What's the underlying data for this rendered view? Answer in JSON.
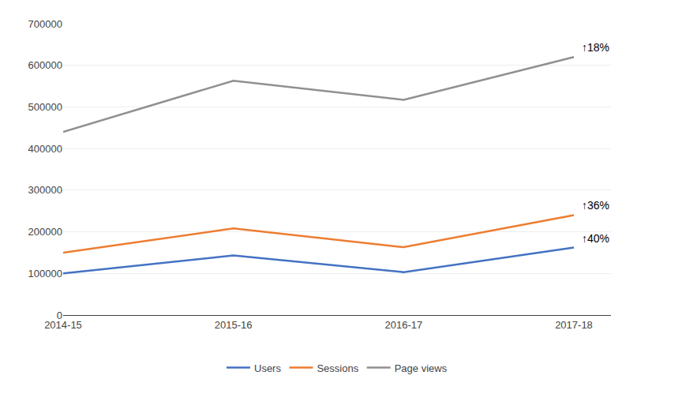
{
  "chart_data": {
    "type": "line",
    "categories": [
      "2014-15",
      "2015-16",
      "2016-17",
      "2017-18"
    ],
    "series": [
      {
        "name": "Users",
        "color": "#4472C4",
        "values": [
          100000,
          143000,
          103000,
          162000
        ],
        "annotation": "↑40%"
      },
      {
        "name": "Sessions",
        "color": "#ED7D31",
        "values": [
          150000,
          208000,
          163000,
          240000
        ],
        "annotation": "↑36%"
      },
      {
        "name": "Page views",
        "color": "#909090",
        "values": [
          440000,
          563000,
          517000,
          620000
        ],
        "annotation": "↑18%"
      }
    ],
    "ylim": [
      0,
      700000
    ],
    "yticks": [
      0,
      100000,
      200000,
      300000,
      400000,
      500000,
      600000,
      700000
    ],
    "grid": true,
    "legend": "bottom"
  }
}
